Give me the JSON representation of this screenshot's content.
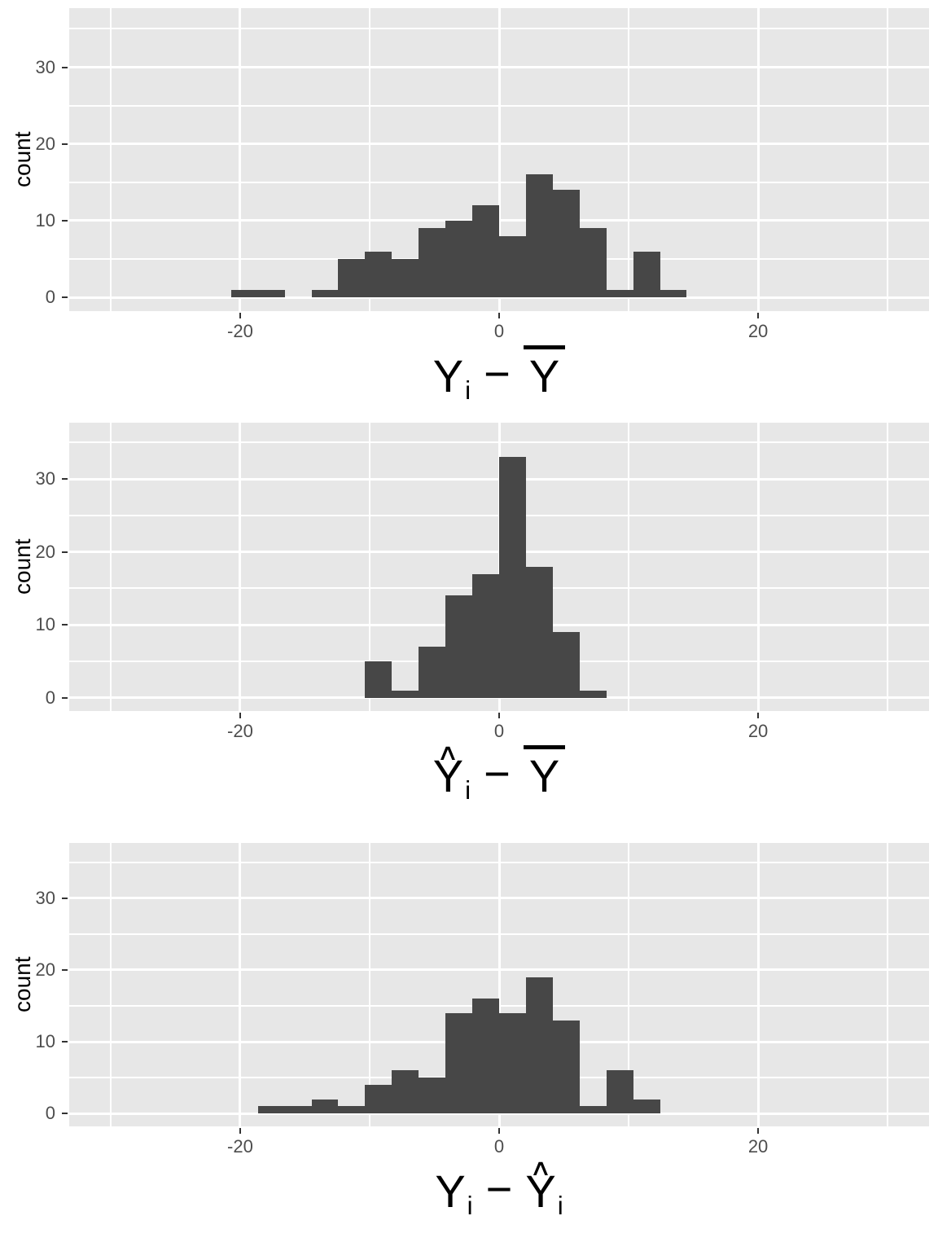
{
  "style": {
    "figure_bg": "#FFFFFF",
    "panel_bg": "#E7E7E7",
    "grid_color": "#FFFFFF",
    "bar_color": "#474747",
    "tick_label_color": "#4D4D4D",
    "tick_mark_color": "#333333",
    "axis_title_color": "#000000",
    "hat_glyph": "∧"
  },
  "chart_data": [
    {
      "type": "bar",
      "subtype": "histogram",
      "title": "",
      "ylabel": "count",
      "xlabel": "Y_i − Y̅",
      "xlabel_tokens": [
        {
          "base": "Y",
          "sub": "i"
        },
        {
          "op": "−"
        },
        {
          "base": "Y",
          "bar": true
        }
      ],
      "bin_start": -20.7,
      "bin_width": 2.07,
      "counts": [
        1,
        1,
        0,
        1,
        5,
        6,
        5,
        9,
        10,
        12,
        8,
        16,
        14,
        9,
        1,
        6,
        1
      ],
      "x_domain": [
        -33.2,
        33.2
      ],
      "y_domain": [
        -1.8,
        37.7
      ],
      "x_major_ticks": [
        -20,
        0,
        20
      ],
      "x_tick_labels": [
        "-20",
        "0",
        "20"
      ],
      "x_minor_gridlines": [
        -30,
        -10,
        10,
        30
      ],
      "y_major_ticks": [
        0,
        10,
        20,
        30
      ],
      "y_tick_labels": [
        "0",
        "10",
        "20",
        "30"
      ],
      "y_minor_gridlines": [
        5,
        15,
        25,
        35
      ]
    },
    {
      "type": "bar",
      "subtype": "histogram",
      "title": "",
      "ylabel": "count",
      "xlabel": "Ŷ_i − Y̅",
      "xlabel_tokens": [
        {
          "base": "Y",
          "sub": "i",
          "hat": true
        },
        {
          "op": "−"
        },
        {
          "base": "Y",
          "bar": true
        }
      ],
      "bin_start": -10.35,
      "bin_width": 2.07,
      "counts": [
        5,
        1,
        7,
        14,
        17,
        33,
        18,
        9,
        1
      ],
      "x_domain": [
        -33.2,
        33.2
      ],
      "y_domain": [
        -1.8,
        37.7
      ],
      "x_major_ticks": [
        -20,
        0,
        20
      ],
      "x_tick_labels": [
        "-20",
        "0",
        "20"
      ],
      "x_minor_gridlines": [
        -30,
        -10,
        10,
        30
      ],
      "y_major_ticks": [
        0,
        10,
        20,
        30
      ],
      "y_tick_labels": [
        "0",
        "10",
        "20",
        "30"
      ],
      "y_minor_gridlines": [
        5,
        15,
        25,
        35
      ]
    },
    {
      "type": "bar",
      "subtype": "histogram",
      "title": "",
      "ylabel": "count",
      "xlabel": "Y_i − Ŷ_i",
      "xlabel_tokens": [
        {
          "base": "Y",
          "sub": "i"
        },
        {
          "op": "−"
        },
        {
          "base": "Y",
          "sub": "i",
          "hat": true
        }
      ],
      "bin_start": -18.63,
      "bin_width": 2.07,
      "counts": [
        1,
        1,
        2,
        1,
        4,
        6,
        5,
        14,
        16,
        14,
        19,
        13,
        1,
        6,
        2
      ],
      "x_domain": [
        -33.2,
        33.2
      ],
      "y_domain": [
        -1.8,
        37.7
      ],
      "x_major_ticks": [
        -20,
        0,
        20
      ],
      "x_tick_labels": [
        "-20",
        "0",
        "20"
      ],
      "x_minor_gridlines": [
        -30,
        -10,
        10,
        30
      ],
      "y_major_ticks": [
        0,
        10,
        20,
        30
      ],
      "y_tick_labels": [
        "0",
        "10",
        "20",
        "30"
      ],
      "y_minor_gridlines": [
        5,
        15,
        25,
        35
      ]
    }
  ]
}
